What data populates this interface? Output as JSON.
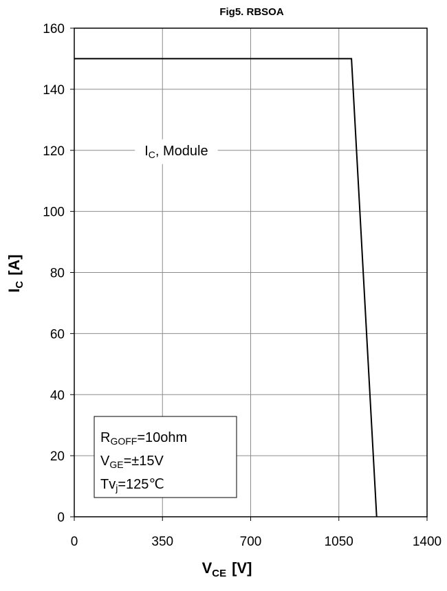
{
  "chart_data": {
    "type": "line",
    "title": "Fig5. RBSOA",
    "xlabel": {
      "main": "V",
      "sub": "CE",
      "unit": "[V]"
    },
    "ylabel": {
      "main": "I",
      "sub": "C",
      "unit": "[A]"
    },
    "xlim": [
      0,
      1400
    ],
    "ylim": [
      0,
      160
    ],
    "xticks": [
      "0",
      "350",
      "700",
      "1050",
      "1400"
    ],
    "yticks": [
      "0",
      "20",
      "40",
      "60",
      "80",
      "100",
      "120",
      "140",
      "160"
    ],
    "grid": true,
    "series": [
      {
        "name": "IC, Module",
        "x": [
          0,
          1100,
          1200
        ],
        "y": [
          150,
          150,
          0
        ],
        "color": "#000000"
      }
    ],
    "series_label": {
      "main": "I",
      "sub": "C",
      "rest": ", Module",
      "at": [
        530,
        120
      ]
    },
    "conditions": [
      {
        "main": "R",
        "sub": "GOFF",
        "rest": "=10ohm"
      },
      {
        "main": "V",
        "sub": "GE",
        "rest": "=±15V"
      },
      {
        "main": "Tv",
        "sub": "j",
        "rest": "=125℃"
      }
    ]
  }
}
